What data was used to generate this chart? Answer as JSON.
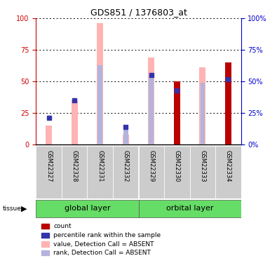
{
  "title": "GDS851 / 1376803_at",
  "samples": [
    "GSM22327",
    "GSM22328",
    "GSM22331",
    "GSM22332",
    "GSM22329",
    "GSM22330",
    "GSM22333",
    "GSM22334"
  ],
  "value_absent": [
    15,
    35,
    96,
    8,
    69,
    0,
    61,
    0
  ],
  "rank_absent": [
    0,
    0,
    63,
    14,
    55,
    0,
    49,
    0
  ],
  "count": [
    0,
    0,
    0,
    0,
    0,
    50,
    0,
    65
  ],
  "percentile": [
    21,
    35,
    0,
    14,
    55,
    43,
    0,
    52
  ],
  "left_yticks": [
    0,
    25,
    50,
    75,
    100
  ],
  "right_yticks": [
    0,
    25,
    50,
    75,
    100
  ],
  "color_count": "#bb0000",
  "color_percentile": "#3333aa",
  "color_value_absent": "#ffb3b3",
  "color_rank_absent": "#b3b3dd",
  "bg_label": "#cccccc",
  "bg_group": "#66dd66",
  "left_axis_color": "#cc0000",
  "right_axis_color": "#0000cc",
  "legend_items": [
    [
      "#bb0000",
      "count"
    ],
    [
      "#3333aa",
      "percentile rank within the sample"
    ],
    [
      "#ffb3b3",
      "value, Detection Call = ABSENT"
    ],
    [
      "#b3b3dd",
      "rank, Detection Call = ABSENT"
    ]
  ]
}
